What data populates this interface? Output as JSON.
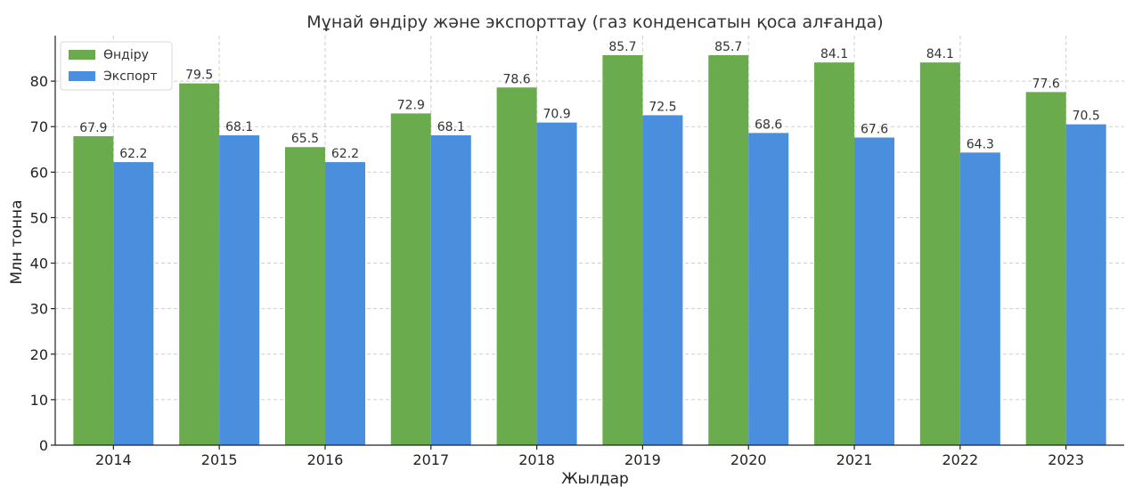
{
  "chart_data": {
    "type": "bar",
    "title": "Мұнай өндіру және экспорттау (газ конденсатын қоса алғанда)",
    "xlabel": "Жылдар",
    "ylabel": "Млн тонна",
    "categories": [
      "2014",
      "2015",
      "2016",
      "2017",
      "2018",
      "2019",
      "2020",
      "2021",
      "2022",
      "2023"
    ],
    "series": [
      {
        "name": "Өндіру",
        "color": "#6aac4d",
        "values": [
          67.9,
          79.5,
          65.5,
          72.9,
          78.6,
          85.7,
          85.7,
          84.1,
          84.1,
          77.6
        ]
      },
      {
        "name": "Экспорт",
        "color": "#4a8fdd",
        "values": [
          62.2,
          68.1,
          62.2,
          68.1,
          70.9,
          72.5,
          68.6,
          67.6,
          64.3,
          70.5
        ]
      }
    ],
    "ylim": [
      0,
      90
    ],
    "yticks": [
      0,
      10,
      20,
      30,
      40,
      50,
      60,
      70,
      80
    ],
    "grid": true,
    "legend_position": "top-left"
  }
}
